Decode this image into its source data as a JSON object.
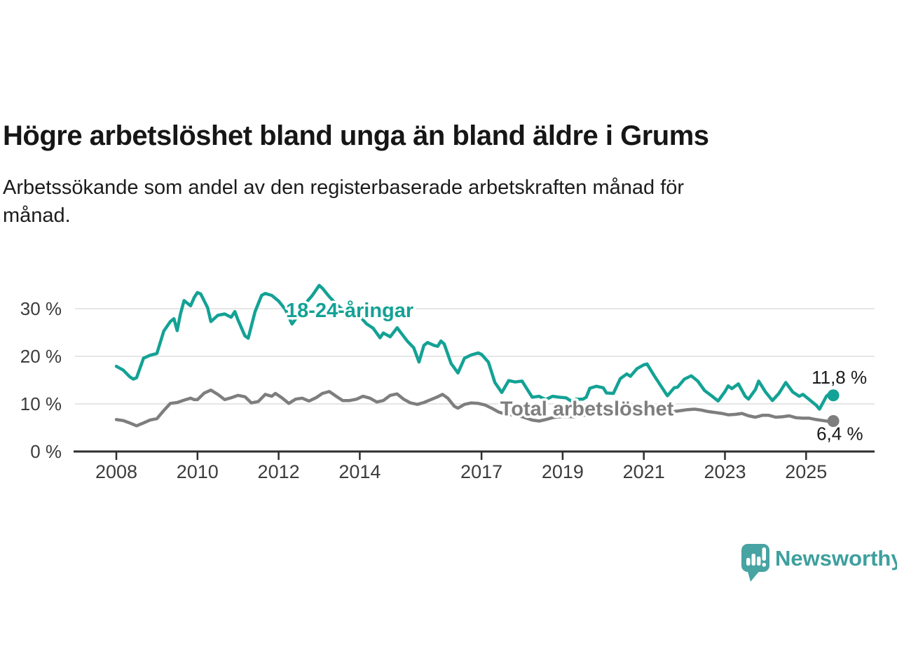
{
  "header": {
    "title": "Högre arbetslöshet bland unga än bland äldre i Grums",
    "subtitle_lines": [
      "Arbetssökande som andel av den registerbaserade arbetskraften månad för",
      "månad."
    ]
  },
  "colors": {
    "young": "#13a295",
    "total": "#7e7e7e",
    "axis_text": "#3c3c3c",
    "axis_line": "#2e2e2e",
    "grid": "#dedede",
    "value_label": "#1a1a1a",
    "brand": "#3da09e",
    "brand_icon": "#48a3a3"
  },
  "footer": {
    "brand": "Newsworthy"
  },
  "chart_data": {
    "type": "line",
    "title": "Högre arbetslöshet bland unga än bland äldre i Grums",
    "subtitle": "Arbetssökande som andel av den registerbaserade arbetskraften månad för månad.",
    "xlabel": "",
    "ylabel": "",
    "xlim": [
      2007.85,
      2026.1
    ],
    "ylim": [
      0,
      36
    ],
    "grid": "horizontal",
    "legend_position": "inline-labels",
    "x_ticks": [
      2008,
      2010,
      2012,
      2014,
      2017,
      2019,
      2021,
      2023,
      2025
    ],
    "x_tick_labels": [
      "2008",
      "2010",
      "2012",
      "2014",
      "2017",
      "2019",
      "2021",
      "2023",
      "2025"
    ],
    "y_ticks": [
      0,
      10,
      20,
      30
    ],
    "y_tick_labels": [
      "0 %",
      "10 %",
      "20 %",
      "30 %"
    ],
    "line_labels": [
      {
        "series": 0,
        "text": "18-24-åringar",
        "x": 2012.18,
        "y": 28.2
      },
      {
        "series": 1,
        "text": "Total arbetslöshet",
        "x": 2017.46,
        "y": 7.55
      }
    ],
    "series": [
      {
        "name": "18-24-åringar",
        "end_label": "11,8 %",
        "end_value": 11.8,
        "color": "#13a295",
        "points": [
          [
            2008.0,
            17.9
          ],
          [
            2008.17,
            17.1
          ],
          [
            2008.33,
            15.7
          ],
          [
            2008.42,
            15.2
          ],
          [
            2008.5,
            15.5
          ],
          [
            2008.67,
            19.6
          ],
          [
            2008.83,
            20.2
          ],
          [
            2009.0,
            20.6
          ],
          [
            2009.17,
            25.3
          ],
          [
            2009.33,
            27.3
          ],
          [
            2009.42,
            27.9
          ],
          [
            2009.5,
            25.4
          ],
          [
            2009.58,
            28.9
          ],
          [
            2009.67,
            31.7
          ],
          [
            2009.83,
            30.6
          ],
          [
            2009.92,
            32.4
          ],
          [
            2010.0,
            33.4
          ],
          [
            2010.08,
            33.1
          ],
          [
            2010.25,
            30.2
          ],
          [
            2010.33,
            27.3
          ],
          [
            2010.5,
            28.6
          ],
          [
            2010.67,
            28.9
          ],
          [
            2010.83,
            28.2
          ],
          [
            2010.92,
            29.4
          ],
          [
            2011.0,
            27.6
          ],
          [
            2011.17,
            24.3
          ],
          [
            2011.25,
            23.8
          ],
          [
            2011.42,
            29.4
          ],
          [
            2011.58,
            32.8
          ],
          [
            2011.67,
            33.2
          ],
          [
            2011.83,
            32.8
          ],
          [
            2012.0,
            31.6
          ],
          [
            2012.17,
            29.8
          ],
          [
            2012.33,
            26.8
          ],
          [
            2012.5,
            28.8
          ],
          [
            2012.67,
            31.2
          ],
          [
            2012.83,
            32.8
          ],
          [
            2013.0,
            34.9
          ],
          [
            2013.08,
            34.3
          ],
          [
            2013.25,
            32.5
          ],
          [
            2013.42,
            31.0
          ],
          [
            2013.58,
            29.7
          ],
          [
            2013.75,
            29.2
          ],
          [
            2013.92,
            28.3
          ],
          [
            2014.0,
            28.4
          ],
          [
            2014.17,
            26.8
          ],
          [
            2014.33,
            25.9
          ],
          [
            2014.5,
            23.9
          ],
          [
            2014.58,
            24.9
          ],
          [
            2014.75,
            24.1
          ],
          [
            2014.92,
            26.0
          ],
          [
            2015.0,
            25.1
          ],
          [
            2015.17,
            23.2
          ],
          [
            2015.33,
            21.8
          ],
          [
            2015.46,
            18.8
          ],
          [
            2015.58,
            22.3
          ],
          [
            2015.67,
            22.9
          ],
          [
            2015.83,
            22.3
          ],
          [
            2015.92,
            22.1
          ],
          [
            2016.0,
            23.2
          ],
          [
            2016.08,
            22.6
          ],
          [
            2016.25,
            18.5
          ],
          [
            2016.42,
            16.5
          ],
          [
            2016.58,
            19.6
          ],
          [
            2016.75,
            20.3
          ],
          [
            2016.92,
            20.7
          ],
          [
            2017.0,
            20.4
          ],
          [
            2017.17,
            18.8
          ],
          [
            2017.33,
            14.5
          ],
          [
            2017.5,
            12.4
          ],
          [
            2017.67,
            14.9
          ],
          [
            2017.83,
            14.6
          ],
          [
            2018.0,
            14.8
          ],
          [
            2018.08,
            13.7
          ],
          [
            2018.25,
            11.4
          ],
          [
            2018.42,
            11.6
          ],
          [
            2018.58,
            10.9
          ],
          [
            2018.75,
            11.6
          ],
          [
            2018.92,
            11.4
          ],
          [
            2019.08,
            11.3
          ],
          [
            2019.25,
            10.4
          ],
          [
            2019.33,
            11.0
          ],
          [
            2019.5,
            11.0
          ],
          [
            2019.58,
            11.4
          ],
          [
            2019.67,
            13.3
          ],
          [
            2019.83,
            13.7
          ],
          [
            2020.0,
            13.4
          ],
          [
            2020.08,
            12.3
          ],
          [
            2020.25,
            12.2
          ],
          [
            2020.42,
            15.3
          ],
          [
            2020.58,
            16.3
          ],
          [
            2020.67,
            15.8
          ],
          [
            2020.83,
            17.4
          ],
          [
            2021.0,
            18.2
          ],
          [
            2021.08,
            18.4
          ],
          [
            2021.25,
            16.0
          ],
          [
            2021.42,
            13.8
          ],
          [
            2021.58,
            11.7
          ],
          [
            2021.75,
            13.4
          ],
          [
            2021.83,
            13.5
          ],
          [
            2022.0,
            15.2
          ],
          [
            2022.17,
            15.9
          ],
          [
            2022.33,
            14.8
          ],
          [
            2022.5,
            12.8
          ],
          [
            2022.67,
            11.7
          ],
          [
            2022.83,
            10.6
          ],
          [
            2023.0,
            12.6
          ],
          [
            2023.08,
            13.8
          ],
          [
            2023.17,
            13.2
          ],
          [
            2023.33,
            14.2
          ],
          [
            2023.5,
            11.6
          ],
          [
            2023.58,
            11.0
          ],
          [
            2023.75,
            13.0
          ],
          [
            2023.83,
            14.8
          ],
          [
            2024.0,
            12.5
          ],
          [
            2024.17,
            10.7
          ],
          [
            2024.33,
            12.2
          ],
          [
            2024.5,
            14.5
          ],
          [
            2024.67,
            12.5
          ],
          [
            2024.83,
            11.6
          ],
          [
            2024.92,
            12.0
          ],
          [
            2025.08,
            10.9
          ],
          [
            2025.25,
            9.7
          ],
          [
            2025.33,
            8.9
          ],
          [
            2025.5,
            11.6
          ],
          [
            2025.58,
            12.2
          ],
          [
            2025.67,
            11.8
          ]
        ]
      },
      {
        "name": "Total arbetslöshet",
        "end_label": "6,4 %",
        "end_value": 6.4,
        "color": "#7e7e7e",
        "points": [
          [
            2008.0,
            6.7
          ],
          [
            2008.17,
            6.5
          ],
          [
            2008.33,
            6.0
          ],
          [
            2008.5,
            5.4
          ],
          [
            2008.67,
            6.0
          ],
          [
            2008.83,
            6.6
          ],
          [
            2009.0,
            6.9
          ],
          [
            2009.17,
            8.6
          ],
          [
            2009.33,
            10.1
          ],
          [
            2009.5,
            10.3
          ],
          [
            2009.67,
            10.8
          ],
          [
            2009.83,
            11.2
          ],
          [
            2009.92,
            10.9
          ],
          [
            2010.0,
            10.9
          ],
          [
            2010.17,
            12.3
          ],
          [
            2010.33,
            12.9
          ],
          [
            2010.5,
            12.0
          ],
          [
            2010.67,
            10.9
          ],
          [
            2010.83,
            11.3
          ],
          [
            2011.0,
            11.8
          ],
          [
            2011.17,
            11.5
          ],
          [
            2011.33,
            10.2
          ],
          [
            2011.5,
            10.5
          ],
          [
            2011.67,
            12.0
          ],
          [
            2011.83,
            11.6
          ],
          [
            2011.92,
            12.2
          ],
          [
            2012.08,
            11.3
          ],
          [
            2012.25,
            10.1
          ],
          [
            2012.42,
            11.0
          ],
          [
            2012.58,
            11.2
          ],
          [
            2012.75,
            10.6
          ],
          [
            2012.92,
            11.3
          ],
          [
            2013.08,
            12.2
          ],
          [
            2013.25,
            12.6
          ],
          [
            2013.42,
            11.6
          ],
          [
            2013.58,
            10.7
          ],
          [
            2013.75,
            10.7
          ],
          [
            2013.92,
            11.0
          ],
          [
            2014.08,
            11.6
          ],
          [
            2014.25,
            11.2
          ],
          [
            2014.42,
            10.4
          ],
          [
            2014.58,
            10.7
          ],
          [
            2014.75,
            11.8
          ],
          [
            2014.92,
            12.1
          ],
          [
            2015.08,
            11.0
          ],
          [
            2015.25,
            10.2
          ],
          [
            2015.42,
            9.9
          ],
          [
            2015.58,
            10.3
          ],
          [
            2015.75,
            10.9
          ],
          [
            2015.92,
            11.5
          ],
          [
            2016.04,
            12.0
          ],
          [
            2016.17,
            11.2
          ],
          [
            2016.33,
            9.5
          ],
          [
            2016.42,
            9.1
          ],
          [
            2016.58,
            9.9
          ],
          [
            2016.75,
            10.2
          ],
          [
            2016.92,
            10.1
          ],
          [
            2017.08,
            9.8
          ],
          [
            2017.25,
            9.1
          ],
          [
            2017.42,
            8.3
          ],
          [
            2017.58,
            7.9
          ],
          [
            2017.75,
            7.7
          ],
          [
            2017.92,
            7.5
          ],
          [
            2018.08,
            7.1
          ],
          [
            2018.25,
            6.6
          ],
          [
            2018.42,
            6.4
          ],
          [
            2018.58,
            6.7
          ],
          [
            2018.75,
            7.1
          ],
          [
            2018.92,
            7.3
          ],
          [
            2019.08,
            7.4
          ],
          [
            2019.25,
            7.3
          ],
          [
            2019.42,
            7.5
          ],
          [
            2019.58,
            7.7
          ],
          [
            2019.75,
            7.9
          ],
          [
            2019.92,
            8.1
          ],
          [
            2020.08,
            8.4
          ],
          [
            2020.25,
            8.8
          ],
          [
            2020.42,
            9.2
          ],
          [
            2020.58,
            9.4
          ],
          [
            2020.75,
            9.4
          ],
          [
            2020.92,
            9.2
          ],
          [
            2021.08,
            8.9
          ],
          [
            2021.25,
            8.6
          ],
          [
            2021.42,
            8.4
          ],
          [
            2021.58,
            8.3
          ],
          [
            2021.75,
            8.4
          ],
          [
            2021.92,
            8.6
          ],
          [
            2022.08,
            8.8
          ],
          [
            2022.25,
            8.9
          ],
          [
            2022.42,
            8.7
          ],
          [
            2022.58,
            8.4
          ],
          [
            2022.75,
            8.2
          ],
          [
            2022.92,
            8.0
          ],
          [
            2023.08,
            7.7
          ],
          [
            2023.25,
            7.8
          ],
          [
            2023.42,
            8.0
          ],
          [
            2023.58,
            7.5
          ],
          [
            2023.75,
            7.2
          ],
          [
            2023.92,
            7.6
          ],
          [
            2024.08,
            7.6
          ],
          [
            2024.25,
            7.2
          ],
          [
            2024.42,
            7.3
          ],
          [
            2024.58,
            7.5
          ],
          [
            2024.75,
            7.1
          ],
          [
            2024.92,
            7.0
          ],
          [
            2025.08,
            7.0
          ],
          [
            2025.25,
            6.7
          ],
          [
            2025.42,
            6.5
          ],
          [
            2025.58,
            6.3
          ],
          [
            2025.67,
            6.4
          ]
        ]
      }
    ]
  }
}
